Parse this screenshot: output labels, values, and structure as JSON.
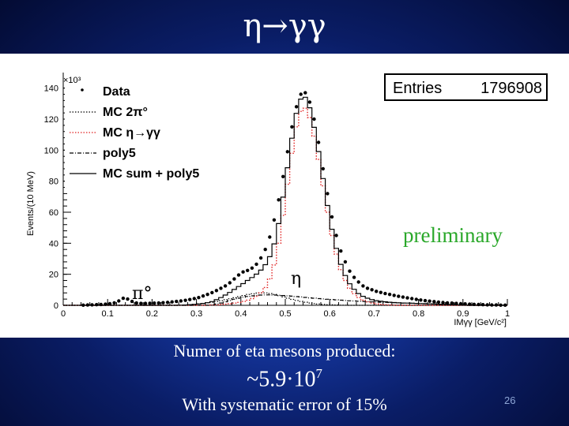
{
  "slide": {
    "title": "η→γγ",
    "caption_line1": "Numer of eta mesons produced:",
    "caption_line2_base": "~5.9·10",
    "caption_line2_exp": "7",
    "caption_line3": "With systematic error of 15%",
    "page_number": "26"
  },
  "chart_data": {
    "type": "line",
    "ylabel": "Events/(10 MeV)",
    "y_multiplier_label": "×10³",
    "x_axis_title": "IMγγ [GeV/c²]",
    "xlim": [
      0,
      1
    ],
    "ylim": [
      0,
      150
    ],
    "x_ticks": [
      "0",
      "0.1",
      "0.2",
      "0.3",
      "0.4",
      "0.5",
      "0.6",
      "0.7",
      "0.8",
      "0.9",
      "1"
    ],
    "y_ticks": [
      "0",
      "20",
      "40",
      "60",
      "80",
      "100",
      "120",
      "140"
    ],
    "stats_box": {
      "label": "Entries",
      "value": "1796908"
    },
    "annotations": {
      "preliminary": "preliminary",
      "pi0": "π°",
      "eta": "η"
    },
    "legend_position": "top-left",
    "legend": [
      {
        "label": "Data",
        "style": "marker",
        "color": "#000000"
      },
      {
        "label": "MC 2π°",
        "style": "dotted",
        "color": "#000000"
      },
      {
        "label": "MC η→γγ",
        "style": "dotted",
        "color": "#e02020"
      },
      {
        "label": "poly5",
        "style": "dashdot",
        "color": "#000000"
      },
      {
        "label": "MC sum + poly5",
        "style": "solid",
        "color": "#000000"
      }
    ],
    "x": [
      0.005,
      0.015,
      0.025,
      0.035,
      0.045,
      0.055,
      0.065,
      0.075,
      0.085,
      0.095,
      0.105,
      0.115,
      0.125,
      0.135,
      0.145,
      0.155,
      0.165,
      0.175,
      0.185,
      0.195,
      0.205,
      0.215,
      0.225,
      0.235,
      0.245,
      0.255,
      0.265,
      0.275,
      0.285,
      0.295,
      0.305,
      0.315,
      0.325,
      0.335,
      0.345,
      0.355,
      0.365,
      0.375,
      0.385,
      0.395,
      0.405,
      0.415,
      0.425,
      0.435,
      0.445,
      0.455,
      0.465,
      0.475,
      0.485,
      0.495,
      0.505,
      0.515,
      0.525,
      0.535,
      0.545,
      0.555,
      0.565,
      0.575,
      0.585,
      0.595,
      0.605,
      0.615,
      0.625,
      0.635,
      0.645,
      0.655,
      0.665,
      0.675,
      0.685,
      0.695,
      0.705,
      0.715,
      0.725,
      0.735,
      0.745,
      0.755,
      0.765,
      0.775,
      0.785,
      0.795,
      0.805,
      0.815,
      0.825,
      0.835,
      0.845,
      0.855,
      0.865,
      0.875,
      0.885,
      0.895,
      0.905,
      0.915,
      0.925,
      0.935,
      0.945,
      0.955,
      0.965,
      0.975,
      0.985,
      0.995
    ],
    "series": [
      {
        "name": "Data",
        "values": [
          0,
          0,
          0,
          0,
          0.1,
          0.2,
          0.3,
          0.4,
          0.5,
          0.7,
          1.0,
          1.6,
          2.8,
          4.5,
          4.0,
          2.5,
          1.5,
          1.2,
          1.2,
          1.3,
          1.4,
          1.5,
          1.7,
          1.9,
          2.2,
          2.5,
          2.8,
          3.2,
          3.7,
          4.3,
          5.0,
          6.0,
          7.0,
          8.2,
          9.5,
          11.0,
          12.5,
          14.5,
          17.0,
          19.5,
          21.5,
          22.5,
          24.0,
          26.5,
          30.5,
          36.0,
          44.0,
          55.0,
          68.0,
          83.0,
          99.0,
          115.0,
          128.0,
          136.0,
          137.0,
          131.0,
          120.0,
          105.0,
          88.0,
          72.0,
          57.0,
          45.0,
          35.0,
          28.0,
          22.0,
          18.0,
          15.0,
          12.5,
          11.0,
          10.0,
          9.0,
          8.3,
          7.6,
          7.0,
          6.4,
          5.8,
          5.3,
          4.8,
          4.3,
          3.8,
          3.4,
          3.0,
          2.7,
          2.4,
          2.1,
          1.8,
          1.6,
          1.4,
          1.2,
          1.0,
          0.9,
          0.7,
          0.6,
          0.5,
          0.4,
          0.3,
          0.2,
          0.2,
          0.1,
          0.1
        ]
      },
      {
        "name": "MC 2π°",
        "values": [
          0,
          0,
          0,
          0,
          0,
          0,
          0,
          0,
          0,
          0,
          0,
          0,
          0,
          0,
          0,
          0,
          0,
          0,
          0,
          0,
          0,
          0,
          0,
          0,
          0,
          0,
          0.1,
          0.2,
          0.4,
          0.6,
          0.9,
          1.2,
          1.6,
          2.0,
          2.5,
          3.0,
          3.6,
          4.2,
          4.9,
          5.6,
          6.3,
          7.0,
          7.5,
          7.9,
          8.1,
          8.0,
          7.6,
          7.0,
          6.2,
          5.4,
          4.6,
          3.8,
          3.1,
          2.5,
          2.0,
          1.5,
          1.1,
          0.8,
          0.6,
          0.4,
          0.3,
          0.2,
          0.1,
          0.1,
          0,
          0,
          0,
          0,
          0,
          0,
          0,
          0,
          0,
          0,
          0,
          0,
          0,
          0,
          0,
          0,
          0,
          0,
          0,
          0,
          0,
          0,
          0,
          0,
          0,
          0,
          0,
          0,
          0,
          0,
          0,
          0,
          0,
          0,
          0,
          0
        ]
      },
      {
        "name": "MC η→γγ",
        "values": [
          0,
          0,
          0,
          0,
          0,
          0,
          0,
          0,
          0,
          0,
          0,
          0,
          0,
          0,
          0,
          0,
          0,
          0,
          0,
          0,
          0,
          0,
          0,
          0,
          0,
          0,
          0,
          0,
          0,
          0,
          0,
          0,
          0.1,
          0.2,
          0.3,
          0.5,
          0.7,
          1.0,
          1.4,
          1.9,
          2.5,
          3.3,
          4.3,
          5.8,
          8.0,
          11.5,
          17.0,
          26.0,
          40.0,
          58.0,
          78.0,
          98.0,
          115.0,
          125.0,
          127.0,
          121.0,
          109.0,
          94.0,
          77.0,
          60.0,
          45.0,
          33.0,
          23.0,
          16.0,
          11.0,
          7.5,
          5.0,
          3.3,
          2.2,
          1.4,
          0.9,
          0.6,
          0.4,
          0.2,
          0.1,
          0,
          0,
          0,
          0,
          0,
          0,
          0,
          0,
          0,
          0,
          0,
          0,
          0,
          0,
          0,
          0,
          0,
          0,
          0,
          0,
          0,
          0,
          0,
          0,
          0
        ]
      },
      {
        "name": "poly5",
        "values": [
          0,
          0,
          0,
          0,
          0,
          0,
          0,
          0,
          0,
          0,
          0,
          0,
          0,
          0,
          0,
          0,
          0,
          0,
          0,
          0,
          0,
          0,
          0,
          0,
          0,
          0,
          0,
          0,
          0,
          0,
          0,
          0,
          0,
          0.2,
          0.8,
          1.5,
          2.3,
          3.1,
          3.9,
          4.6,
          5.2,
          5.7,
          6.1,
          6.4,
          6.6,
          6.7,
          6.7,
          6.6,
          6.5,
          6.3,
          6.1,
          5.9,
          5.6,
          5.4,
          5.1,
          4.8,
          4.6,
          4.3,
          4.1,
          3.9,
          3.7,
          3.5,
          3.3,
          3.1,
          2.9,
          2.8,
          2.6,
          2.5,
          2.4,
          2.2,
          2.1,
          2.0,
          1.9,
          1.8,
          1.7,
          1.6,
          1.5,
          1.4,
          1.3,
          1.2,
          1.1,
          1.0,
          0.9,
          0.8,
          0.7,
          0.6,
          0.5,
          0.4,
          0.3,
          0.2,
          0.1,
          0,
          0,
          0,
          0,
          0,
          0,
          0,
          0,
          0
        ]
      },
      {
        "name": "MC sum + poly5",
        "values": [
          0,
          0,
          0,
          0,
          0,
          0,
          0,
          0,
          0,
          0,
          0,
          0,
          0,
          0,
          0,
          0,
          0,
          0,
          0,
          0,
          0,
          0,
          0,
          0,
          0,
          0,
          0.1,
          0.2,
          0.4,
          0.6,
          0.9,
          1.2,
          1.7,
          2.4,
          3.6,
          5.0,
          6.6,
          8.3,
          10.2,
          12.1,
          14.0,
          16.0,
          17.9,
          20.1,
          22.7,
          26.2,
          31.3,
          39.6,
          52.7,
          69.7,
          88.7,
          107.7,
          123.7,
          132.9,
          134.1,
          127.3,
          114.7,
          99.1,
          81.7,
          64.3,
          49.0,
          36.7,
          26.4,
          19.2,
          13.9,
          10.3,
          7.6,
          5.8,
          4.6,
          3.6,
          3.0,
          2.6,
          2.3,
          2.0,
          1.8,
          1.6,
          1.5,
          1.4,
          1.3,
          1.2,
          1.1,
          1.0,
          0.9,
          0.8,
          0.7,
          0.6,
          0.5,
          0.4,
          0.3,
          0.2,
          0.1,
          0,
          0,
          0,
          0,
          0,
          0,
          0,
          0,
          0
        ]
      }
    ]
  }
}
